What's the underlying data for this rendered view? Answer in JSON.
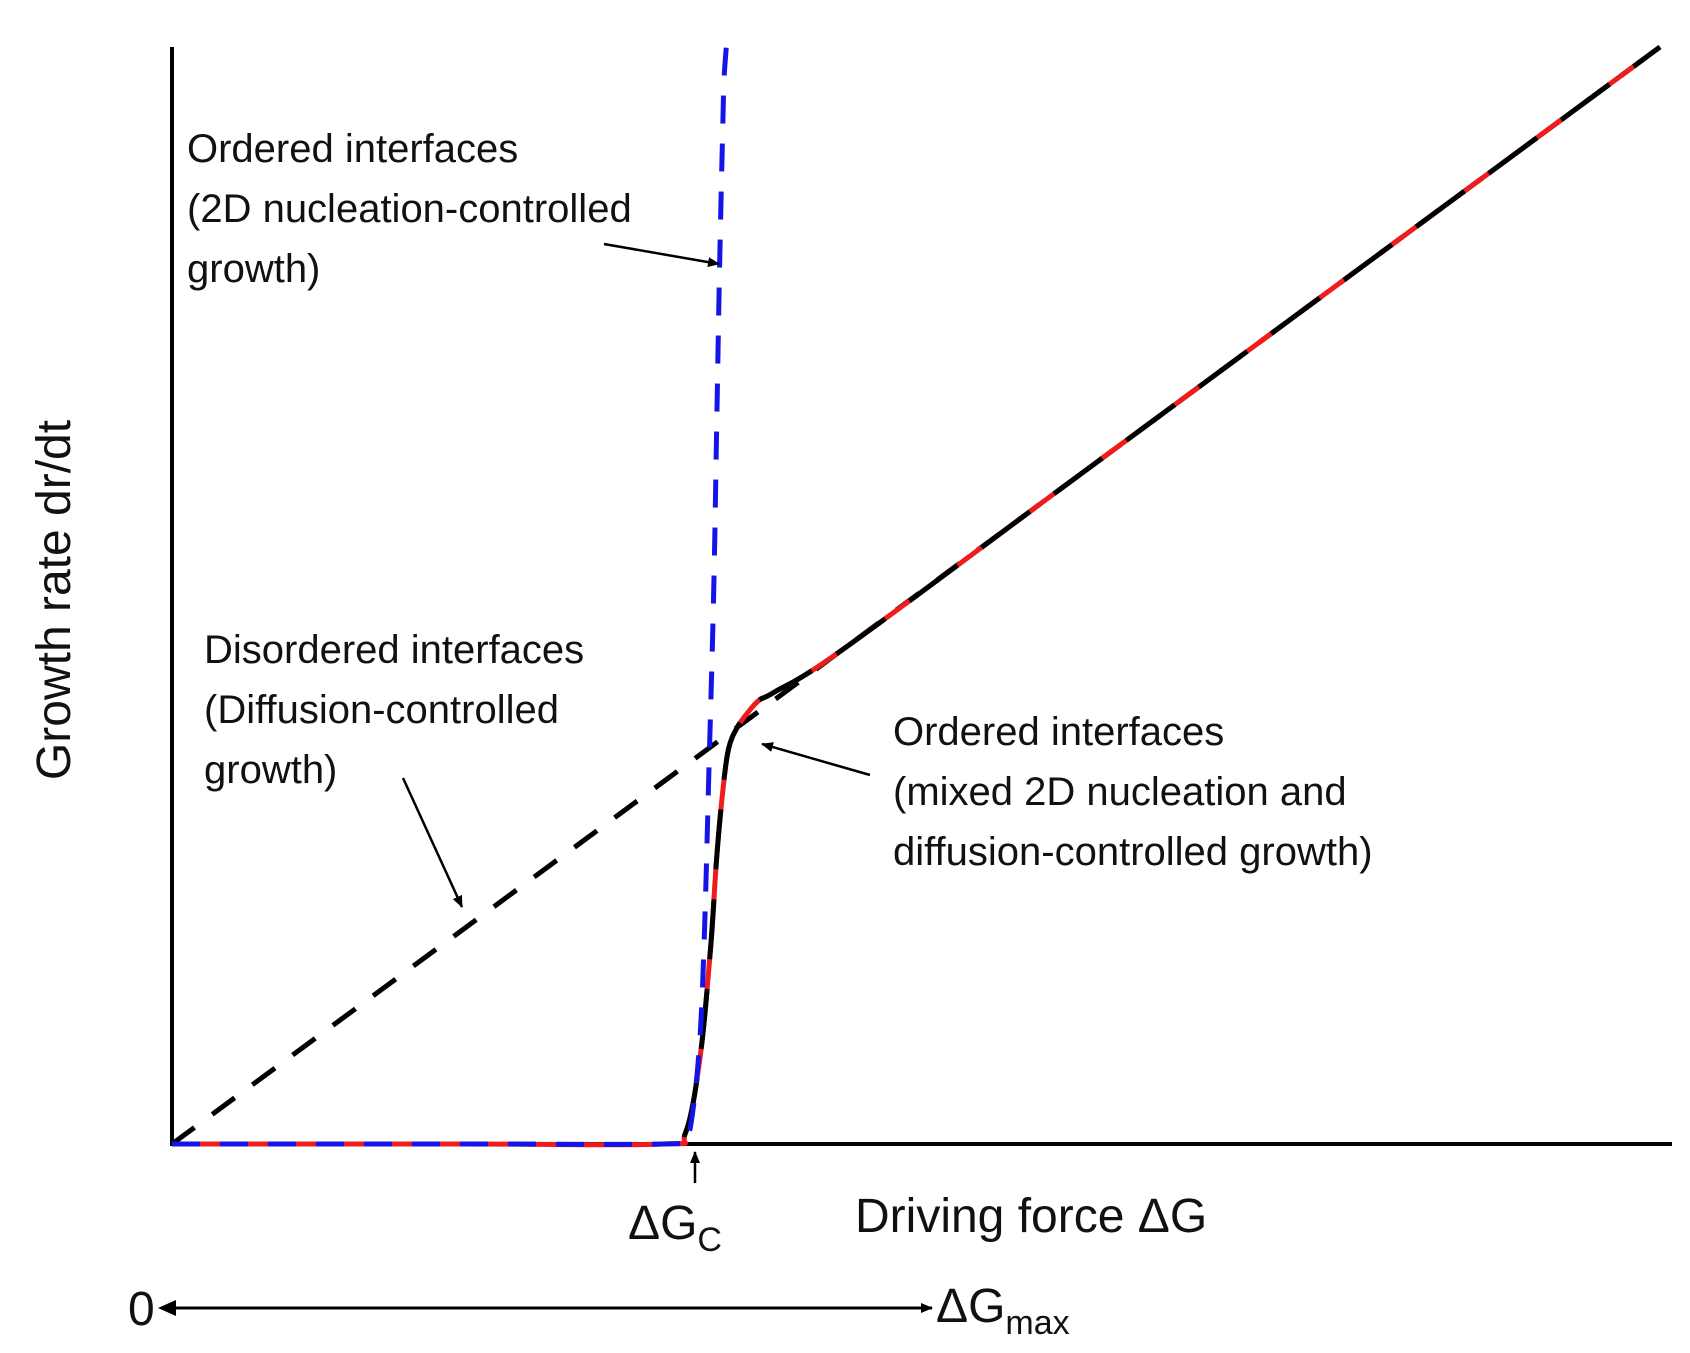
{
  "colors": {
    "axis": "#000000",
    "black_dash": "#000000",
    "blue_dash": "#1414e6",
    "red_curve": "#ee1c1c",
    "background": "#ffffff"
  },
  "chart_data": {
    "type": "line",
    "title": "",
    "xlabel": "Driving force ΔG",
    "ylabel": "Growth rate dr/dt",
    "xlim": [
      0,
      1
    ],
    "ylim": [
      0,
      1
    ],
    "grid": false,
    "tick_labels": {
      "critical_delta": "ΔG",
      "critical_sub": "C"
    },
    "range_arrow": {
      "start_label": "0",
      "end_label": "ΔG",
      "end_sub": "max"
    },
    "series": [
      {
        "name": "Disordered interfaces (Diffusion-controlled growth)",
        "style": "black-dashed",
        "x": [
          0.0,
          1.0
        ],
        "y": [
          0.0,
          1.0
        ]
      },
      {
        "name": "Ordered interfaces (2D nucleation-controlled growth)",
        "style": "blue-dashed",
        "x": [
          0.0,
          0.2,
          0.33,
          0.345,
          0.35,
          0.355,
          0.358,
          0.361,
          0.364,
          0.366,
          0.368,
          0.37,
          0.371,
          0.3725
        ],
        "y": [
          0.0,
          0.0,
          0.0,
          0.005,
          0.03,
          0.1,
          0.2,
          0.35,
          0.5,
          0.65,
          0.8,
          0.92,
          0.97,
          1.0
        ]
      },
      {
        "name": "Ordered interfaces (mixed 2D nucleation and diffusion-controlled growth)",
        "style": "red-solid with black dashes",
        "x": [
          0.0,
          0.2,
          0.33,
          0.345,
          0.355,
          0.362,
          0.366,
          0.37,
          0.374,
          0.38,
          0.388,
          0.395,
          0.405,
          0.45,
          0.6,
          0.8,
          1.0
        ],
        "y": [
          0.0,
          0.0,
          0.0,
          0.01,
          0.08,
          0.18,
          0.26,
          0.32,
          0.36,
          0.38,
          0.395,
          0.405,
          0.412,
          0.45,
          0.6,
          0.8,
          1.0
        ]
      }
    ],
    "annotations": [
      {
        "id": "ordered_2d",
        "lines": [
          "Ordered interfaces",
          "(2D nucleation-controlled",
          "growth)"
        ],
        "points_to": "Ordered interfaces (2D nucleation-controlled growth)"
      },
      {
        "id": "disordered",
        "lines": [
          "Disordered interfaces",
          "(Diffusion-controlled",
          "growth)"
        ],
        "points_to": "Disordered interfaces (Diffusion-controlled growth)"
      },
      {
        "id": "ordered_mixed",
        "lines": [
          "Ordered interfaces",
          "(mixed 2D nucleation and",
          "diffusion-controlled growth)"
        ],
        "points_to": "Ordered interfaces (mixed 2D nucleation and diffusion-controlled growth)"
      }
    ]
  }
}
